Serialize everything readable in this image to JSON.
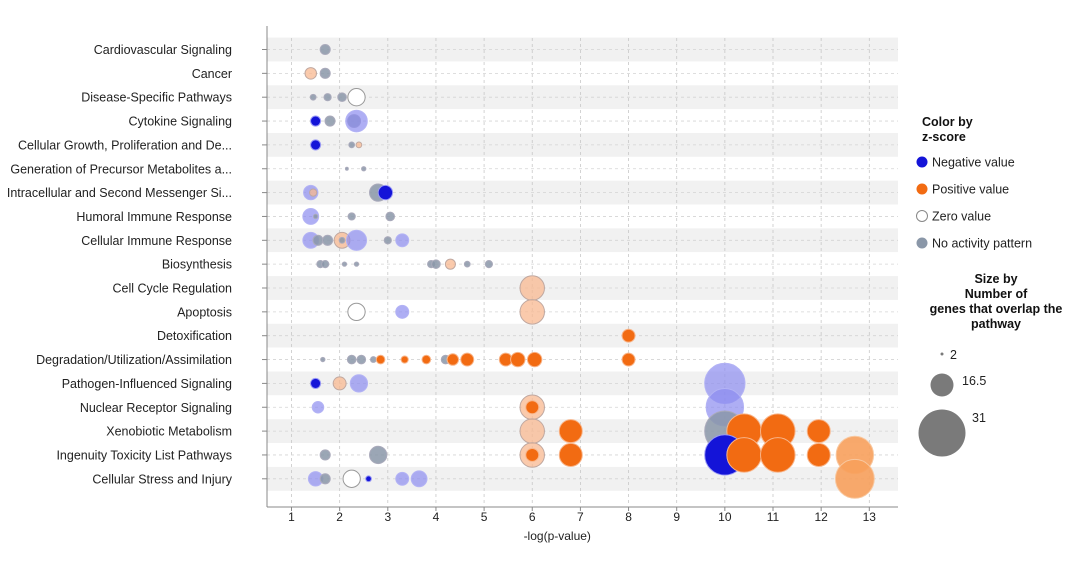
{
  "chart_data": {
    "type": "scatter",
    "xlabel": "-log(p-value)",
    "xlim": [
      0.5,
      13.5
    ],
    "xticks": [
      1,
      2,
      3,
      4,
      5,
      6,
      7,
      8,
      9,
      10,
      11,
      12,
      13
    ],
    "categories": [
      "Cardiovascular Signaling",
      "Cancer",
      "Disease-Specific Pathways",
      "Cytokine Signaling",
      "Cellular Growth, Proliferation and De...",
      "Generation of Precursor Metabolites a...",
      "Intracellular and Second Messenger Si...",
      "Humoral Immune Response",
      "Cellular Immune Response",
      "Biosynthesis",
      "Cell Cycle Regulation",
      "Apoptosis",
      "Detoxification",
      "Degradation/Utilization/Assimilation",
      "Pathogen-Influenced Signaling",
      "Nuclear Receptor Signaling",
      "Xenobiotic Metabolism",
      "Ingenuity Toxicity List Pathways",
      "Cellular Stress and Injury"
    ],
    "points": [
      {
        "cat": 0,
        "x": 1.7,
        "size": 7,
        "z": "none"
      },
      {
        "cat": 1,
        "x": 1.4,
        "size": 8,
        "z": "pos_light"
      },
      {
        "cat": 1,
        "x": 1.7,
        "size": 7,
        "z": "none"
      },
      {
        "cat": 2,
        "x": 1.45,
        "size": 4,
        "z": "none"
      },
      {
        "cat": 2,
        "x": 1.75,
        "size": 5,
        "z": "none"
      },
      {
        "cat": 2,
        "x": 2.05,
        "size": 6,
        "z": "none"
      },
      {
        "cat": 2,
        "x": 2.35,
        "size": 12,
        "z": "zero"
      },
      {
        "cat": 3,
        "x": 1.5,
        "size": 7,
        "z": "neg"
      },
      {
        "cat": 3,
        "x": 1.8,
        "size": 7,
        "z": "none"
      },
      {
        "cat": 3,
        "x": 2.3,
        "size": 9,
        "z": "none"
      },
      {
        "cat": 3,
        "x": 2.35,
        "size": 15,
        "z": "neg_light"
      },
      {
        "cat": 4,
        "x": 1.5,
        "size": 7,
        "z": "neg"
      },
      {
        "cat": 4,
        "x": 2.25,
        "size": 4,
        "z": "none"
      },
      {
        "cat": 4,
        "x": 2.4,
        "size": 4,
        "z": "pos_light"
      },
      {
        "cat": 5,
        "x": 2.15,
        "size": 2,
        "z": "none"
      },
      {
        "cat": 5,
        "x": 2.5,
        "size": 3,
        "z": "none"
      },
      {
        "cat": 6,
        "x": 1.4,
        "size": 10,
        "z": "neg_light"
      },
      {
        "cat": 6,
        "x": 1.45,
        "size": 5,
        "z": "pos_light"
      },
      {
        "cat": 6,
        "x": 2.8,
        "size": 12,
        "z": "none"
      },
      {
        "cat": 6,
        "x": 2.95,
        "size": 10,
        "z": "neg"
      },
      {
        "cat": 7,
        "x": 1.4,
        "size": 11,
        "z": "neg_light"
      },
      {
        "cat": 7,
        "x": 1.5,
        "size": 3,
        "z": "none"
      },
      {
        "cat": 7,
        "x": 2.25,
        "size": 5,
        "z": "none"
      },
      {
        "cat": 7,
        "x": 3.05,
        "size": 6,
        "z": "none"
      },
      {
        "cat": 8,
        "x": 1.4,
        "size": 11,
        "z": "neg_light"
      },
      {
        "cat": 8,
        "x": 1.55,
        "size": 7,
        "z": "none"
      },
      {
        "cat": 8,
        "x": 1.75,
        "size": 7,
        "z": "none"
      },
      {
        "cat": 8,
        "x": 2.05,
        "size": 11,
        "z": "pos_light"
      },
      {
        "cat": 8,
        "x": 2.05,
        "size": 4,
        "z": "none"
      },
      {
        "cat": 8,
        "x": 2.35,
        "size": 14,
        "z": "neg_light"
      },
      {
        "cat": 8,
        "x": 3.0,
        "size": 5,
        "z": "none"
      },
      {
        "cat": 8,
        "x": 3.3,
        "size": 9,
        "z": "neg_light"
      },
      {
        "cat": 9,
        "x": 1.6,
        "size": 5,
        "z": "none"
      },
      {
        "cat": 9,
        "x": 1.7,
        "size": 5,
        "z": "none"
      },
      {
        "cat": 9,
        "x": 2.1,
        "size": 3,
        "z": "none"
      },
      {
        "cat": 9,
        "x": 2.35,
        "size": 3,
        "z": "none"
      },
      {
        "cat": 9,
        "x": 3.9,
        "size": 5,
        "z": "none"
      },
      {
        "cat": 9,
        "x": 4.0,
        "size": 6,
        "z": "none"
      },
      {
        "cat": 9,
        "x": 4.3,
        "size": 7,
        "z": "pos_light"
      },
      {
        "cat": 9,
        "x": 4.65,
        "size": 4,
        "z": "none"
      },
      {
        "cat": 9,
        "x": 5.1,
        "size": 5,
        "z": "none"
      },
      {
        "cat": 10,
        "x": 6.0,
        "size": 17,
        "z": "pos_light"
      },
      {
        "cat": 11,
        "x": 2.35,
        "size": 12,
        "z": "zero"
      },
      {
        "cat": 11,
        "x": 3.3,
        "size": 9,
        "z": "neg_light"
      },
      {
        "cat": 11,
        "x": 6.0,
        "size": 17,
        "z": "pos_light"
      },
      {
        "cat": 12,
        "x": 8.0,
        "size": 9,
        "z": "pos"
      },
      {
        "cat": 13,
        "x": 1.65,
        "size": 3,
        "z": "none"
      },
      {
        "cat": 13,
        "x": 2.25,
        "size": 6,
        "z": "none"
      },
      {
        "cat": 13,
        "x": 2.45,
        "size": 6,
        "z": "none"
      },
      {
        "cat": 13,
        "x": 2.7,
        "size": 4,
        "z": "none"
      },
      {
        "cat": 13,
        "x": 2.85,
        "size": 6,
        "z": "pos"
      },
      {
        "cat": 13,
        "x": 3.35,
        "size": 5,
        "z": "pos"
      },
      {
        "cat": 13,
        "x": 3.8,
        "size": 6,
        "z": "pos"
      },
      {
        "cat": 13,
        "x": 4.2,
        "size": 6,
        "z": "none"
      },
      {
        "cat": 13,
        "x": 4.35,
        "size": 8,
        "z": "pos"
      },
      {
        "cat": 13,
        "x": 4.65,
        "size": 9,
        "z": "pos"
      },
      {
        "cat": 13,
        "x": 5.45,
        "size": 9,
        "z": "pos"
      },
      {
        "cat": 13,
        "x": 5.7,
        "size": 10,
        "z": "pos"
      },
      {
        "cat": 13,
        "x": 6.05,
        "size": 10,
        "z": "pos"
      },
      {
        "cat": 13,
        "x": 8.0,
        "size": 9,
        "z": "pos"
      },
      {
        "cat": 14,
        "x": 1.5,
        "size": 7,
        "z": "neg"
      },
      {
        "cat": 14,
        "x": 2.0,
        "size": 9,
        "z": "pos_light"
      },
      {
        "cat": 14,
        "x": 2.4,
        "size": 12,
        "z": "neg_light"
      },
      {
        "cat": 14,
        "x": 10.0,
        "size": 28,
        "z": "neg_light"
      },
      {
        "cat": 15,
        "x": 1.55,
        "size": 8,
        "z": "neg_light"
      },
      {
        "cat": 15,
        "x": 6.0,
        "size": 17,
        "z": "pos_light"
      },
      {
        "cat": 15,
        "x": 6.0,
        "size": 9,
        "z": "pos"
      },
      {
        "cat": 15,
        "x": 10.0,
        "size": 26,
        "z": "neg_light"
      },
      {
        "cat": 16,
        "x": 6.0,
        "size": 17,
        "z": "pos_light"
      },
      {
        "cat": 16,
        "x": 6.8,
        "size": 16,
        "z": "pos"
      },
      {
        "cat": 16,
        "x": 10.0,
        "size": 28,
        "z": "none"
      },
      {
        "cat": 16,
        "x": 10.4,
        "size": 24,
        "z": "pos"
      },
      {
        "cat": 16,
        "x": 11.1,
        "size": 24,
        "z": "pos"
      },
      {
        "cat": 16,
        "x": 11.95,
        "size": 16,
        "z": "pos"
      },
      {
        "cat": 17,
        "x": 1.7,
        "size": 7,
        "z": "none"
      },
      {
        "cat": 17,
        "x": 2.8,
        "size": 12,
        "z": "none"
      },
      {
        "cat": 17,
        "x": 6.0,
        "size": 17,
        "z": "pos_light"
      },
      {
        "cat": 17,
        "x": 6.0,
        "size": 9,
        "z": "pos"
      },
      {
        "cat": 17,
        "x": 6.8,
        "size": 16,
        "z": "pos"
      },
      {
        "cat": 17,
        "x": 10.0,
        "size": 28,
        "z": "neg"
      },
      {
        "cat": 17,
        "x": 10.4,
        "size": 24,
        "z": "pos"
      },
      {
        "cat": 17,
        "x": 11.1,
        "size": 24,
        "z": "pos"
      },
      {
        "cat": 17,
        "x": 11.95,
        "size": 16,
        "z": "pos"
      },
      {
        "cat": 17,
        "x": 12.7,
        "size": 26,
        "z": "pos_light2"
      },
      {
        "cat": 18,
        "x": 1.5,
        "size": 10,
        "z": "neg_light"
      },
      {
        "cat": 18,
        "x": 1.7,
        "size": 7,
        "z": "none"
      },
      {
        "cat": 18,
        "x": 2.25,
        "size": 12,
        "z": "zero"
      },
      {
        "cat": 18,
        "x": 2.6,
        "size": 4,
        "z": "neg"
      },
      {
        "cat": 18,
        "x": 3.3,
        "size": 9,
        "z": "neg_light"
      },
      {
        "cat": 18,
        "x": 3.65,
        "size": 11,
        "z": "neg_light"
      },
      {
        "cat": 18,
        "x": 12.7,
        "size": 27,
        "z": "pos_light2"
      }
    ],
    "legend": {
      "color_title_line1": "Color by",
      "color_title_line2": "z-score",
      "color_items": [
        {
          "label": "Negative value",
          "z": "neg"
        },
        {
          "label": "Positive value",
          "z": "pos"
        },
        {
          "label": "Zero value",
          "z": "zero"
        },
        {
          "label": "No activity pattern",
          "z": "none"
        }
      ],
      "size_title_lines": [
        "Size by",
        "Number of",
        "genes that overlap the",
        "pathway"
      ],
      "size_items": [
        {
          "label": "2",
          "value": 2
        },
        {
          "label": "16.5",
          "value": 16.5
        },
        {
          "label": "31",
          "value": 31
        }
      ]
    },
    "colors": {
      "neg": "#1414d8",
      "neg_light": "#8c8cf0",
      "pos": "#f26b12",
      "pos_light": "#f8b890",
      "pos_light2": "#f7a05c",
      "zero": "#ffffff",
      "none": "#8a97a8",
      "legend_size": "#7a7a7a"
    },
    "grid": true
  }
}
